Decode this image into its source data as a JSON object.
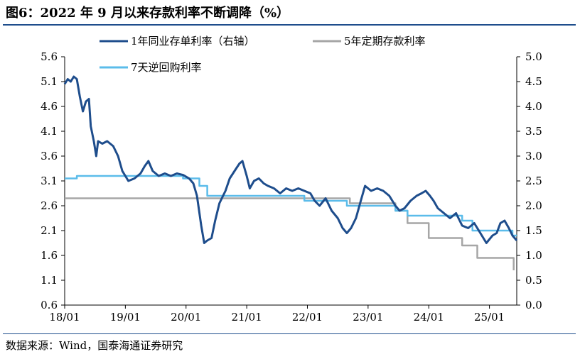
{
  "title": "图6：2022 年 9 月以来存款利率不断调降（%）",
  "source": "数据来源：Wind，国泰海通证券研究",
  "chart_data": {
    "type": "line",
    "title": "图6：2022 年 9 月以来存款利率不断调降（%）",
    "x_ticks": [
      "18/01",
      "19/01",
      "20/01",
      "21/01",
      "22/01",
      "23/01",
      "24/01",
      "25/01"
    ],
    "x_range": [
      2018.0,
      2025.45
    ],
    "y_left_ticks": [
      "0.6",
      "1.1",
      "1.6",
      "2.1",
      "2.6",
      "3.1",
      "3.6",
      "4.1",
      "4.6",
      "5.1",
      "5.6"
    ],
    "y_left_range": [
      0.6,
      5.6
    ],
    "y_right_ticks": [
      "0.0",
      "0.5",
      "1.0",
      "1.5",
      "2.0",
      "2.5",
      "3.0",
      "3.5",
      "4.0",
      "4.5",
      "5.0"
    ],
    "y_right_range": [
      0.0,
      5.0
    ],
    "legend_position": "top",
    "grid": false,
    "series": [
      {
        "name": "1年同业存单利率（右轴）",
        "axis": "right",
        "color": "#1e4d8c",
        "points": [
          [
            2018.0,
            4.45
          ],
          [
            2018.05,
            4.55
          ],
          [
            2018.1,
            4.5
          ],
          [
            2018.15,
            4.6
          ],
          [
            2018.2,
            4.55
          ],
          [
            2018.25,
            4.2
          ],
          [
            2018.3,
            3.9
          ],
          [
            2018.35,
            4.1
          ],
          [
            2018.4,
            4.15
          ],
          [
            2018.43,
            3.6
          ],
          [
            2018.48,
            3.3
          ],
          [
            2018.52,
            3.0
          ],
          [
            2018.55,
            3.3
          ],
          [
            2018.62,
            3.25
          ],
          [
            2018.7,
            3.3
          ],
          [
            2018.8,
            3.2
          ],
          [
            2018.88,
            3.0
          ],
          [
            2018.95,
            2.7
          ],
          [
            2019.05,
            2.5
          ],
          [
            2019.15,
            2.55
          ],
          [
            2019.25,
            2.65
          ],
          [
            2019.32,
            2.8
          ],
          [
            2019.38,
            2.9
          ],
          [
            2019.45,
            2.7
          ],
          [
            2019.55,
            2.6
          ],
          [
            2019.65,
            2.65
          ],
          [
            2019.75,
            2.6
          ],
          [
            2019.85,
            2.65
          ],
          [
            2019.95,
            2.62
          ],
          [
            2020.05,
            2.55
          ],
          [
            2020.12,
            2.45
          ],
          [
            2020.18,
            2.2
          ],
          [
            2020.25,
            1.6
          ],
          [
            2020.3,
            1.25
          ],
          [
            2020.35,
            1.3
          ],
          [
            2020.42,
            1.35
          ],
          [
            2020.48,
            1.7
          ],
          [
            2020.55,
            2.05
          ],
          [
            2020.65,
            2.3
          ],
          [
            2020.72,
            2.55
          ],
          [
            2020.8,
            2.7
          ],
          [
            2020.88,
            2.85
          ],
          [
            2020.93,
            2.9
          ],
          [
            2021.0,
            2.6
          ],
          [
            2021.05,
            2.35
          ],
          [
            2021.12,
            2.5
          ],
          [
            2021.2,
            2.55
          ],
          [
            2021.28,
            2.45
          ],
          [
            2021.35,
            2.4
          ],
          [
            2021.45,
            2.35
          ],
          [
            2021.55,
            2.25
          ],
          [
            2021.65,
            2.35
          ],
          [
            2021.75,
            2.3
          ],
          [
            2021.85,
            2.35
          ],
          [
            2021.95,
            2.3
          ],
          [
            2022.05,
            2.25
          ],
          [
            2022.12,
            2.1
          ],
          [
            2022.2,
            2.0
          ],
          [
            2022.3,
            2.15
          ],
          [
            2022.4,
            1.9
          ],
          [
            2022.5,
            1.75
          ],
          [
            2022.58,
            1.55
          ],
          [
            2022.65,
            1.45
          ],
          [
            2022.72,
            1.55
          ],
          [
            2022.8,
            1.75
          ],
          [
            2022.88,
            2.1
          ],
          [
            2022.95,
            2.4
          ],
          [
            2023.05,
            2.3
          ],
          [
            2023.15,
            2.35
          ],
          [
            2023.25,
            2.3
          ],
          [
            2023.35,
            2.2
          ],
          [
            2023.45,
            2.0
          ],
          [
            2023.52,
            1.9
          ],
          [
            2023.6,
            1.95
          ],
          [
            2023.7,
            2.1
          ],
          [
            2023.8,
            2.2
          ],
          [
            2023.88,
            2.25
          ],
          [
            2023.95,
            2.3
          ],
          [
            2024.02,
            2.2
          ],
          [
            2024.08,
            2.1
          ],
          [
            2024.15,
            1.95
          ],
          [
            2024.25,
            1.85
          ],
          [
            2024.35,
            1.75
          ],
          [
            2024.45,
            1.85
          ],
          [
            2024.55,
            1.6
          ],
          [
            2024.65,
            1.55
          ],
          [
            2024.75,
            1.65
          ],
          [
            2024.85,
            1.45
          ],
          [
            2024.95,
            1.25
          ],
          [
            2025.05,
            1.4
          ],
          [
            2025.12,
            1.45
          ],
          [
            2025.18,
            1.65
          ],
          [
            2025.25,
            1.7
          ],
          [
            2025.32,
            1.55
          ],
          [
            2025.38,
            1.4
          ],
          [
            2025.45,
            1.3
          ]
        ]
      },
      {
        "name": "5年定期存款利率",
        "axis": "left",
        "color": "#a6a6a6",
        "points": [
          [
            2018.0,
            2.75
          ],
          [
            2022.7,
            2.75
          ],
          [
            2022.7,
            2.65
          ],
          [
            2023.45,
            2.65
          ],
          [
            2023.45,
            2.5
          ],
          [
            2023.65,
            2.5
          ],
          [
            2023.65,
            2.25
          ],
          [
            2024.0,
            2.25
          ],
          [
            2024.0,
            1.95
          ],
          [
            2024.55,
            1.95
          ],
          [
            2024.55,
            1.8
          ],
          [
            2024.8,
            1.8
          ],
          [
            2024.8,
            1.55
          ],
          [
            2025.4,
            1.55
          ],
          [
            2025.4,
            1.3
          ]
        ]
      },
      {
        "name": "7天逆回购利率",
        "axis": "right",
        "color": "#5bbcea",
        "points": [
          [
            2018.0,
            2.55
          ],
          [
            2018.2,
            2.55
          ],
          [
            2018.2,
            2.6
          ],
          [
            2018.65,
            2.6
          ],
          [
            2019.95,
            2.6
          ],
          [
            2019.95,
            2.55
          ],
          [
            2020.22,
            2.55
          ],
          [
            2020.22,
            2.4
          ],
          [
            2020.35,
            2.4
          ],
          [
            2020.35,
            2.2
          ],
          [
            2021.95,
            2.2
          ],
          [
            2021.95,
            2.1
          ],
          [
            2022.65,
            2.1
          ],
          [
            2022.65,
            2.0
          ],
          [
            2023.45,
            2.0
          ],
          [
            2023.45,
            1.9
          ],
          [
            2023.65,
            1.9
          ],
          [
            2023.65,
            1.8
          ],
          [
            2024.55,
            1.8
          ],
          [
            2024.55,
            1.7
          ],
          [
            2024.72,
            1.7
          ],
          [
            2024.72,
            1.5
          ],
          [
            2025.38,
            1.5
          ],
          [
            2025.38,
            1.4
          ],
          [
            2025.45,
            1.4
          ]
        ]
      }
    ]
  }
}
